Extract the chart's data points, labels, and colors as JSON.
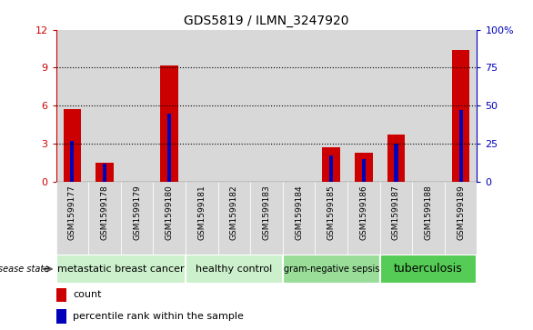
{
  "title": "GDS5819 / ILMN_3247920",
  "samples": [
    "GSM1599177",
    "GSM1599178",
    "GSM1599179",
    "GSM1599180",
    "GSM1599181",
    "GSM1599182",
    "GSM1599183",
    "GSM1599184",
    "GSM1599185",
    "GSM1599186",
    "GSM1599187",
    "GSM1599188",
    "GSM1599189"
  ],
  "count_values": [
    5.7,
    1.5,
    0.0,
    9.2,
    0.0,
    0.0,
    0.0,
    0.0,
    2.7,
    2.3,
    3.7,
    0.0,
    10.4
  ],
  "percentile_values": [
    27,
    12,
    0,
    45,
    0,
    0,
    0,
    0,
    17,
    15,
    25,
    0,
    47
  ],
  "ylim_left": [
    0,
    12
  ],
  "ylim_right": [
    0,
    100
  ],
  "yticks_left": [
    0,
    3,
    6,
    9,
    12
  ],
  "yticks_right": [
    0,
    25,
    50,
    75,
    100
  ],
  "bar_width": 0.55,
  "blue_bar_width": 0.12,
  "count_color": "#cc0000",
  "percentile_color": "#0000bb",
  "groups": [
    {
      "label": "metastatic breast cancer",
      "start": 0,
      "end": 4,
      "color": "#ccf0cc",
      "fontsize": 8
    },
    {
      "label": "healthy control",
      "start": 4,
      "end": 7,
      "color": "#ccf0cc",
      "fontsize": 8
    },
    {
      "label": "gram-negative sepsis",
      "start": 7,
      "end": 10,
      "color": "#99dd99",
      "fontsize": 7
    },
    {
      "label": "tuberculosis",
      "start": 10,
      "end": 13,
      "color": "#55cc55",
      "fontsize": 9
    }
  ],
  "disease_state_label": "disease state",
  "legend_count_label": "count",
  "legend_percentile_label": "percentile rank within the sample",
  "background_color": "#ffffff",
  "plot_bg": "#ffffff",
  "col_bg": "#d8d8d8",
  "spine_color": "#000000"
}
